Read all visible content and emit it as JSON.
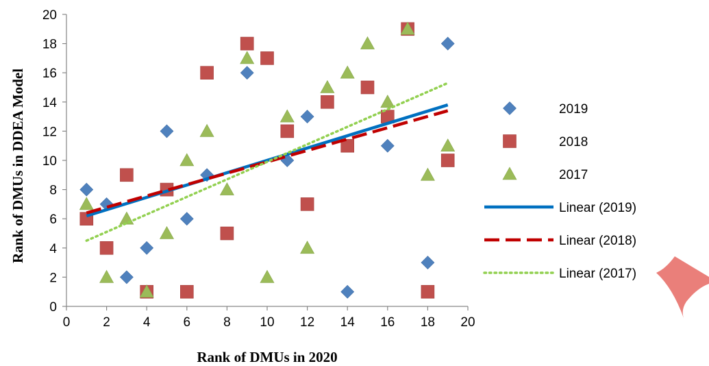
{
  "chart_data": {
    "type": "scatter",
    "xlabel": "Rank of DMUs in 2020",
    "ylabel": "Rank of DMUs in DDEA Model",
    "xlim": [
      0,
      20
    ],
    "ylim": [
      0,
      20
    ],
    "x_ticks": [
      0,
      2,
      4,
      6,
      8,
      10,
      12,
      14,
      16,
      18,
      20
    ],
    "y_ticks": [
      0,
      2,
      4,
      6,
      8,
      10,
      12,
      14,
      16,
      18,
      20
    ],
    "grid": false,
    "legend_position": "right",
    "series": [
      {
        "name": "2019",
        "marker": "diamond",
        "color": "#4F81BD",
        "points": [
          [
            1,
            8
          ],
          [
            2,
            7
          ],
          [
            3,
            2
          ],
          [
            4,
            4
          ],
          [
            5,
            12
          ],
          [
            6,
            6
          ],
          [
            7,
            9
          ],
          [
            9,
            16
          ],
          [
            11,
            10
          ],
          [
            12,
            13
          ],
          [
            14,
            1
          ],
          [
            16,
            11
          ],
          [
            18,
            3
          ],
          [
            19,
            18
          ]
        ]
      },
      {
        "name": "2018",
        "marker": "square",
        "color": "#C0504D",
        "points": [
          [
            1,
            6
          ],
          [
            2,
            4
          ],
          [
            3,
            9
          ],
          [
            4,
            1
          ],
          [
            5,
            8
          ],
          [
            6,
            1
          ],
          [
            7,
            16
          ],
          [
            8,
            5
          ],
          [
            9,
            18
          ],
          [
            10,
            17
          ],
          [
            11,
            12
          ],
          [
            12,
            7
          ],
          [
            13,
            14
          ],
          [
            14,
            11
          ],
          [
            15,
            15
          ],
          [
            16,
            13
          ],
          [
            17,
            19
          ],
          [
            18,
            1
          ],
          [
            19,
            10
          ]
        ]
      },
      {
        "name": "2017",
        "marker": "triangle",
        "color": "#9BBB59",
        "points": [
          [
            1,
            7
          ],
          [
            2,
            2
          ],
          [
            3,
            6
          ],
          [
            4,
            1
          ],
          [
            5,
            5
          ],
          [
            6,
            10
          ],
          [
            7,
            12
          ],
          [
            8,
            8
          ],
          [
            9,
            17
          ],
          [
            10,
            2
          ],
          [
            11,
            13
          ],
          [
            12,
            4
          ],
          [
            13,
            15
          ],
          [
            14,
            16
          ],
          [
            15,
            18
          ],
          [
            16,
            14
          ],
          [
            17,
            19
          ],
          [
            18,
            9
          ],
          [
            19,
            11
          ]
        ]
      }
    ],
    "trendlines": [
      {
        "name": "Linear (2019)",
        "style": "solid",
        "color": "#0070C0",
        "x": [
          1,
          19
        ],
        "y": [
          6.2,
          13.8
        ]
      },
      {
        "name": "Linear (2018)",
        "style": "dashed",
        "color": "#C00000",
        "x": [
          1,
          19
        ],
        "y": [
          6.4,
          13.4
        ]
      },
      {
        "name": "Linear (2017)",
        "style": "dotted",
        "color": "#92D050",
        "x": [
          1,
          19
        ],
        "y": [
          4.5,
          15.3
        ]
      }
    ],
    "decoration_color": "#E8716C"
  }
}
